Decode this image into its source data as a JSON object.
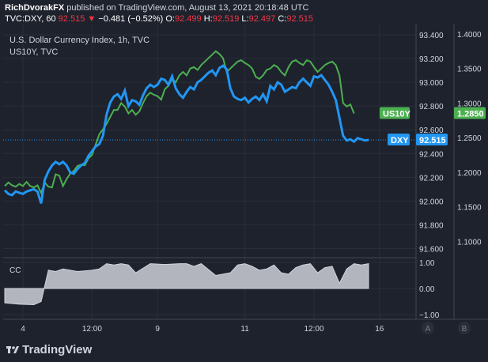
{
  "header": {
    "publisher": "RichDvorakFX",
    "published_text": "published on TradingView.com, August 13, 2021 20:18:48 UTC",
    "symbol": "TVC:DXY, 60",
    "last": "92.515",
    "change_arrow": "▼",
    "change": "−0.481 (−0.52%)",
    "o_label": "O:",
    "o": "92.499",
    "h_label": "H:",
    "h": "92.519",
    "l_label": "L:",
    "l": "92.497",
    "c_label": "C:",
    "c": "92.515"
  },
  "chart_title": "U.S. Dollar Currency Index, 1h, TVC",
  "overlay_label": "US10Y, TVC",
  "indicator_label": "CC",
  "brand": "TradingView",
  "colors": {
    "dxy": "#2196f3",
    "us10y": "#4caf50",
    "cc_fill": "#b2b5be",
    "background": "#1e222d",
    "grid": "#2a2e39"
  },
  "chart_data": [
    {
      "type": "line",
      "title": "U.S. Dollar Currency Index, 1h, TVC",
      "x_tick_labels": [
        "4",
        "12:00",
        "9",
        "11",
        "12:00",
        "16"
      ],
      "left_axis_ticks": [
        91.6,
        91.8,
        92.0,
        92.2,
        92.4,
        92.6,
        92.8,
        93.0,
        93.2,
        93.4
      ],
      "right_axis_ticks": [
        1.1,
        1.15,
        1.2,
        1.25,
        1.3,
        1.35,
        1.4
      ],
      "left_ylim": [
        91.53,
        93.48
      ],
      "right_ylim": [
        1.0775,
        1.4125
      ],
      "series": [
        {
          "name": "DXY",
          "axis": "left",
          "last_label": "92.515",
          "x": [
            0,
            1,
            2,
            3,
            4,
            5,
            6,
            7,
            8,
            9,
            10,
            11,
            12,
            13,
            14,
            15,
            16,
            17,
            18,
            19,
            20,
            21,
            22,
            23,
            24,
            25,
            26,
            27,
            28,
            29,
            30,
            31,
            32,
            33,
            34,
            35,
            36,
            37,
            38,
            39,
            40,
            41,
            42,
            43,
            44,
            45,
            46,
            47,
            48,
            49,
            50,
            51,
            52,
            53,
            54,
            55,
            56,
            57,
            58,
            59,
            60,
            61,
            62,
            63,
            64,
            65,
            66,
            67,
            68,
            69,
            70,
            71,
            72,
            73,
            74,
            75,
            76,
            77,
            78,
            79,
            80,
            81,
            82,
            83,
            84,
            85,
            86,
            87,
            88,
            89,
            90,
            91,
            92,
            93,
            94,
            95,
            96,
            97,
            98,
            99,
            100
          ],
          "values": [
            92.09,
            92.06,
            92.05,
            92.08,
            92.07,
            92.06,
            92.08,
            92.09,
            92.1,
            92.08,
            91.98,
            92.18,
            92.25,
            92.3,
            92.33,
            92.31,
            92.33,
            92.3,
            92.24,
            92.23,
            92.27,
            92.3,
            92.32,
            92.38,
            92.42,
            92.46,
            92.48,
            92.55,
            92.73,
            92.83,
            92.88,
            92.9,
            92.86,
            92.93,
            92.8,
            92.85,
            92.84,
            92.81,
            92.89,
            92.95,
            92.98,
            92.96,
            92.98,
            93.03,
            93.02,
            92.98,
            93.05,
            92.95,
            92.9,
            92.87,
            92.92,
            92.96,
            92.94,
            93.0,
            93.02,
            93.05,
            93.08,
            93.1,
            93.06,
            93.12,
            93.14,
            93.11,
            92.95,
            92.88,
            92.86,
            92.85,
            92.87,
            92.83,
            92.86,
            92.88,
            92.85,
            92.9,
            92.84,
            92.97,
            92.94,
            93.0,
            92.98,
            92.92,
            92.94,
            92.96,
            92.95,
            93.0,
            93.03,
            93.0,
            92.97,
            93.05,
            93.04,
            93.06,
            93.02,
            92.98,
            92.92,
            92.85,
            92.7,
            92.55,
            92.51,
            92.52,
            92.5,
            92.53,
            92.52,
            92.51,
            92.515
          ]
        },
        {
          "name": "US10Y",
          "axis": "right",
          "last_label": "1.2850",
          "x": [
            0,
            1,
            2,
            3,
            4,
            5,
            6,
            7,
            8,
            9,
            10,
            11,
            12,
            13,
            14,
            15,
            16,
            17,
            18,
            19,
            20,
            21,
            22,
            23,
            24,
            25,
            26,
            27,
            28,
            29,
            30,
            31,
            32,
            33,
            34,
            35,
            36,
            37,
            38,
            39,
            40,
            41,
            42,
            43,
            44,
            45,
            46,
            47,
            48,
            49,
            50,
            51,
            52,
            53,
            54,
            55,
            56,
            57,
            58,
            59,
            60,
            61,
            62,
            63,
            64,
            65,
            66,
            67,
            68,
            69,
            70,
            71,
            72,
            73,
            74,
            75,
            76,
            77,
            78,
            79,
            80,
            81,
            82,
            83,
            84,
            85,
            86,
            87,
            88,
            89,
            90,
            91,
            92,
            93,
            94,
            95,
            96
          ],
          "values": [
            1.18,
            1.185,
            1.181,
            1.179,
            1.183,
            1.18,
            1.186,
            1.18,
            1.178,
            1.181,
            1.17,
            1.185,
            1.179,
            1.178,
            1.197,
            1.195,
            1.18,
            1.19,
            1.198,
            1.202,
            1.209,
            1.211,
            1.21,
            1.22,
            1.225,
            1.24,
            1.255,
            1.262,
            1.27,
            1.28,
            1.29,
            1.29,
            1.3,
            1.295,
            1.285,
            1.29,
            1.283,
            1.288,
            1.3,
            1.31,
            1.315,
            1.312,
            1.31,
            1.305,
            1.32,
            1.325,
            1.335,
            1.33,
            1.34,
            1.345,
            1.34,
            1.35,
            1.352,
            1.348,
            1.355,
            1.36,
            1.365,
            1.37,
            1.375,
            1.371,
            1.365,
            1.345,
            1.35,
            1.355,
            1.36,
            1.362,
            1.358,
            1.355,
            1.35,
            1.338,
            1.335,
            1.34,
            1.348,
            1.35,
            1.355,
            1.352,
            1.345,
            1.34,
            1.352,
            1.36,
            1.362,
            1.358,
            1.355,
            1.362,
            1.36,
            1.352,
            1.345,
            1.35,
            1.355,
            1.358,
            1.36,
            1.355,
            1.34,
            1.3,
            1.295,
            1.298,
            1.285
          ]
        }
      ]
    },
    {
      "type": "area",
      "title": "CC",
      "right_axis_ticks": [
        -1.0,
        0.0,
        1.0
      ],
      "ylim": [
        -1.15,
        1.15
      ],
      "axis_tick_labels": [
        "−1.00",
        "0.00",
        "1.00"
      ],
      "series": [
        {
          "name": "CC",
          "x": [
            0,
            4,
            8,
            10,
            12,
            14,
            16,
            20,
            24,
            26,
            28,
            30,
            32,
            34,
            36,
            40,
            44,
            48,
            50,
            52,
            54,
            58,
            62,
            64,
            66,
            68,
            70,
            72,
            74,
            76,
            78,
            80,
            82,
            84,
            86,
            88,
            90,
            92,
            94,
            96,
            98,
            100
          ],
          "values": [
            -0.55,
            -0.6,
            -0.62,
            -0.5,
            0.7,
            0.65,
            0.75,
            0.65,
            0.7,
            0.75,
            0.95,
            0.9,
            0.95,
            0.9,
            0.6,
            0.95,
            0.92,
            0.95,
            0.95,
            0.85,
            0.95,
            0.5,
            0.6,
            0.9,
            0.95,
            0.85,
            0.7,
            0.75,
            0.9,
            0.6,
            0.55,
            0.8,
            0.9,
            0.95,
            0.6,
            0.8,
            0.85,
            0.2,
            0.75,
            0.95,
            0.9,
            0.95
          ]
        }
      ]
    }
  ]
}
